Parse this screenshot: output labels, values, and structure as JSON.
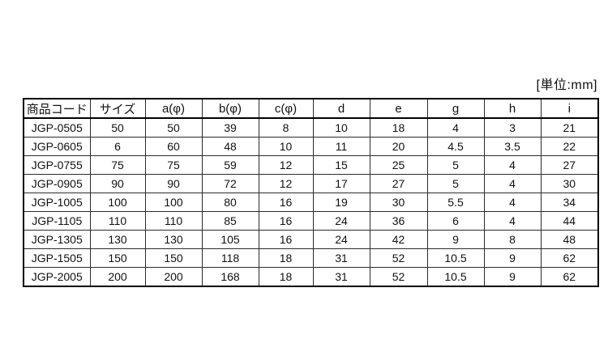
{
  "unit_label": "[単位:mm]",
  "colors": {
    "background": "#ffffff",
    "border_outer": "#000000",
    "border_inner": "#2b2b2b",
    "text": "#111111"
  },
  "table": {
    "columns": [
      "商品コード",
      "サイズ",
      "a(φ)",
      "b(φ)",
      "c(φ)",
      "d",
      "e",
      "g",
      "h",
      "i"
    ],
    "rows": [
      [
        "JGP-0505",
        "50",
        "50",
        "39",
        "8",
        "10",
        "18",
        "4",
        "3",
        "21"
      ],
      [
        "JGP-0605",
        "6",
        "60",
        "48",
        "10",
        "11",
        "20",
        "4.5",
        "3.5",
        "22"
      ],
      [
        "JGP-0755",
        "75",
        "75",
        "59",
        "12",
        "15",
        "25",
        "5",
        "4",
        "27"
      ],
      [
        "JGP-0905",
        "90",
        "90",
        "72",
        "12",
        "17",
        "27",
        "5",
        "4",
        "30"
      ],
      [
        "JGP-1005",
        "100",
        "100",
        "80",
        "16",
        "19",
        "30",
        "5.5",
        "4",
        "34"
      ],
      [
        "JGP-1105",
        "110",
        "110",
        "85",
        "16",
        "24",
        "36",
        "6",
        "4",
        "44"
      ],
      [
        "JGP-1305",
        "130",
        "130",
        "105",
        "16",
        "24",
        "42",
        "9",
        "8",
        "48"
      ],
      [
        "JGP-1505",
        "150",
        "150",
        "118",
        "18",
        "31",
        "52",
        "10.5",
        "9",
        "62"
      ],
      [
        "JGP-2005",
        "200",
        "200",
        "168",
        "18",
        "31",
        "52",
        "10.5",
        "9",
        "62"
      ]
    ]
  },
  "chart_data": {
    "type": "table",
    "title": "",
    "unit": "mm",
    "columns": [
      "商品コード",
      "サイズ",
      "a(φ)",
      "b(φ)",
      "c(φ)",
      "d",
      "e",
      "g",
      "h",
      "i"
    ],
    "rows": [
      [
        "JGP-0505",
        50,
        50,
        39,
        8,
        10,
        18,
        4,
        3,
        21
      ],
      [
        "JGP-0605",
        6,
        60,
        48,
        10,
        11,
        20,
        4.5,
        3.5,
        22
      ],
      [
        "JGP-0755",
        75,
        75,
        59,
        12,
        15,
        25,
        5,
        4,
        27
      ],
      [
        "JGP-0905",
        90,
        90,
        72,
        12,
        17,
        27,
        5,
        4,
        30
      ],
      [
        "JGP-1005",
        100,
        100,
        80,
        16,
        19,
        30,
        5.5,
        4,
        34
      ],
      [
        "JGP-1105",
        110,
        110,
        85,
        16,
        24,
        36,
        6,
        4,
        44
      ],
      [
        "JGP-1305",
        130,
        130,
        105,
        16,
        24,
        42,
        9,
        8,
        48
      ],
      [
        "JGP-1505",
        150,
        150,
        118,
        18,
        31,
        52,
        10.5,
        9,
        62
      ],
      [
        "JGP-2005",
        200,
        200,
        168,
        18,
        31,
        52,
        10.5,
        9,
        62
      ]
    ]
  }
}
